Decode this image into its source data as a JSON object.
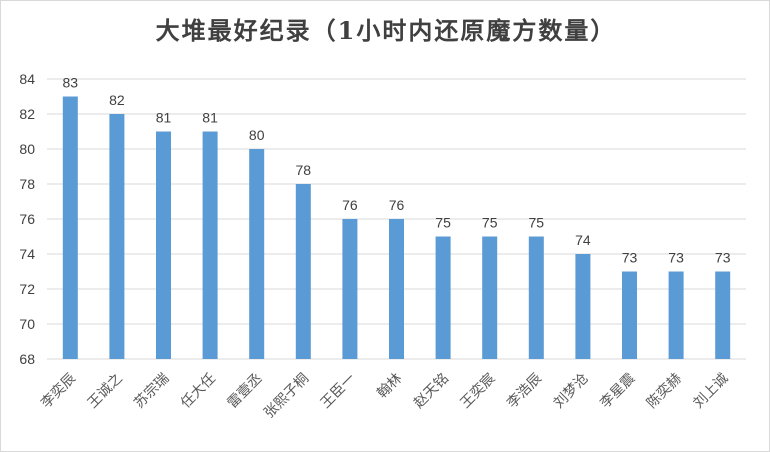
{
  "chart_data": {
    "type": "bar",
    "title": "大堆最好纪录（1小时内还原魔方数量）",
    "xlabel": "",
    "ylabel": "",
    "categories": [
      "李奕辰",
      "王诚之",
      "苏宗瑞",
      "任大任",
      "雷壹丞",
      "张熙子桐",
      "王臣一",
      "翰林",
      "赵天铭",
      "王奕宸",
      "李浩辰",
      "刘梦沧",
      "李星震",
      "陈奕赫",
      "刘上诚"
    ],
    "values": [
      83,
      82,
      81,
      81,
      80,
      78,
      76,
      76,
      75,
      75,
      75,
      74,
      73,
      73,
      73
    ],
    "ylim": [
      68,
      84
    ],
    "yticks": [
      68,
      70,
      72,
      74,
      76,
      78,
      80,
      82,
      84
    ],
    "grid": true,
    "legend": "none",
    "bar_color": "#5b9bd5",
    "grid_color": "#d9d9d9"
  }
}
